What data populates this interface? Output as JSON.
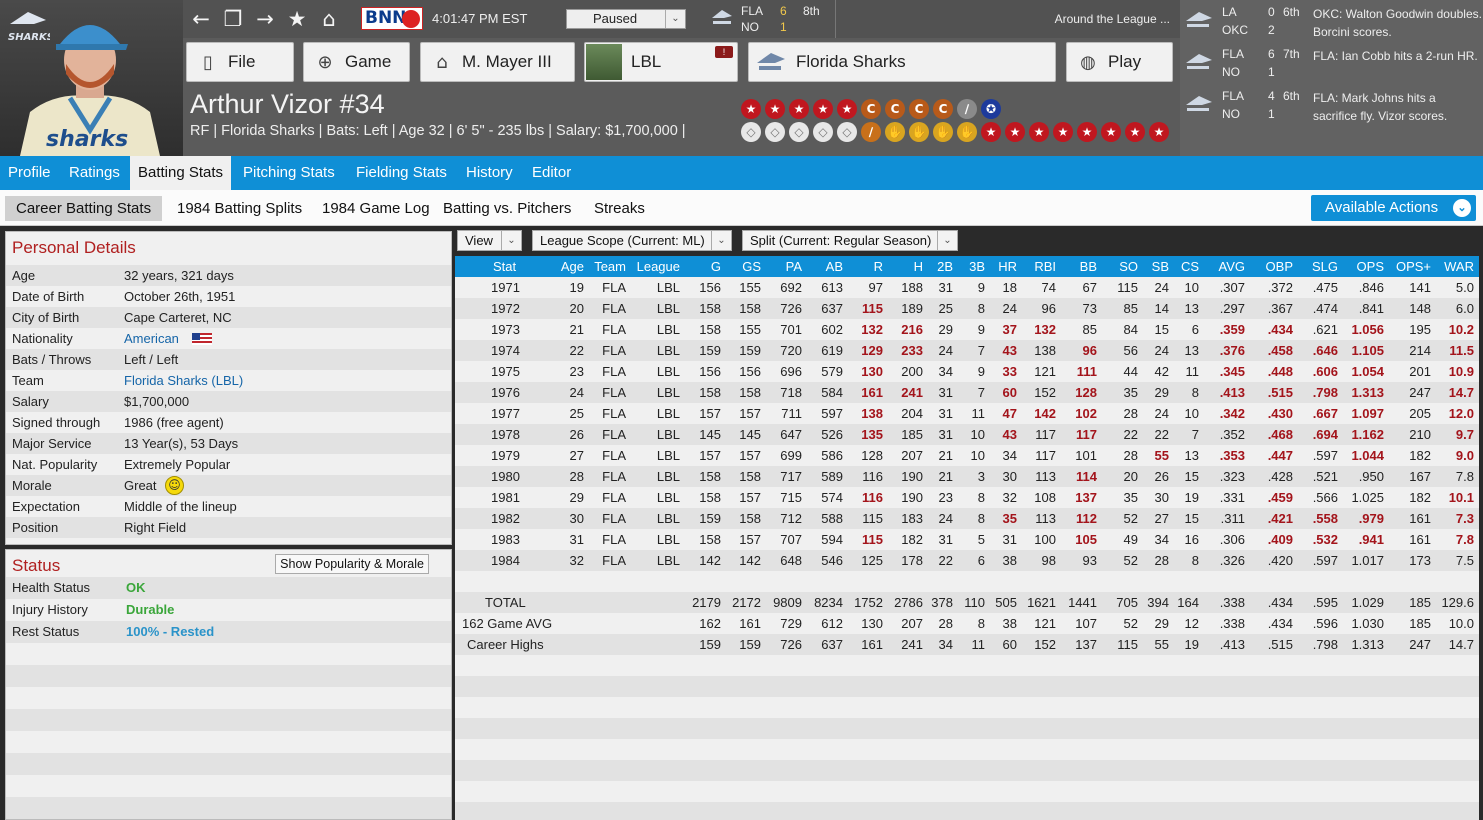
{
  "header": {
    "clock": "4:01:47 PM  EST",
    "bnn": "BNN",
    "sim_status": "Paused",
    "score": {
      "team1": "FLA",
      "team2": "NO",
      "score1": "6",
      "score2": "1",
      "inning": "8th"
    },
    "around_label": "Around the League ...",
    "menu": {
      "file": "File",
      "game": "Game",
      "manager": "M. Mayer III",
      "league": "LBL",
      "team": "Florida Sharks",
      "play": "Play"
    },
    "league_badge": "!"
  },
  "player": {
    "name": "Arthur Vizor  #34",
    "info": "RF | Florida Sharks  |  Bats: Left  |  Age 32  |  6' 5\" - 235 lbs  |  Salary: $1,700,000  |",
    "team_logo_text": "SHARKS",
    "jersey_text": "sharks"
  },
  "awards_row1": [
    {
      "g": "★",
      "c": "#c0171f"
    },
    {
      "g": "★",
      "c": "#c0171f"
    },
    {
      "g": "★",
      "c": "#c0171f"
    },
    {
      "g": "★",
      "c": "#c0171f"
    },
    {
      "g": "★",
      "c": "#c0171f"
    },
    {
      "g": "C",
      "c": "#b85a1a"
    },
    {
      "g": "C",
      "c": "#b85a1a"
    },
    {
      "g": "C",
      "c": "#b85a1a"
    },
    {
      "g": "C",
      "c": "#b85a1a"
    },
    {
      "g": "∕",
      "c": "#8a8a8a"
    },
    {
      "g": "✪",
      "c": "#1d3a9c"
    }
  ],
  "awards_row2": [
    {
      "g": "◇",
      "c": "#e8e8e8"
    },
    {
      "g": "◇",
      "c": "#e8e8e8"
    },
    {
      "g": "◇",
      "c": "#e8e8e8"
    },
    {
      "g": "◇",
      "c": "#e8e8e8"
    },
    {
      "g": "◇",
      "c": "#e8e8e8"
    },
    {
      "g": "∕",
      "c": "#c8701a"
    },
    {
      "g": "✋",
      "c": "#d9a520"
    },
    {
      "g": "✋",
      "c": "#d9a520"
    },
    {
      "g": "✋",
      "c": "#d9a520"
    },
    {
      "g": "✋",
      "c": "#d9a520"
    },
    {
      "g": "★",
      "c": "#c0171f"
    },
    {
      "g": "★",
      "c": "#c0171f"
    },
    {
      "g": "★",
      "c": "#c0171f"
    },
    {
      "g": "★",
      "c": "#c0171f"
    },
    {
      "g": "★",
      "c": "#c0171f"
    },
    {
      "g": "★",
      "c": "#c0171f"
    },
    {
      "g": "★",
      "c": "#c0171f"
    },
    {
      "g": "★",
      "c": "#c0171f"
    }
  ],
  "ticker": [
    {
      "a": "LA",
      "b": "OKC",
      "sa": "0",
      "sb": "2",
      "inn": "6th",
      "text": "OKC: Walton Goodwin doubles. Borcini scores."
    },
    {
      "a": "FLA",
      "b": "NO",
      "sa": "6",
      "sb": "1",
      "inn": "7th",
      "text": "FLA: Ian Cobb hits a 2-run HR."
    },
    {
      "a": "FLA",
      "b": "NO",
      "sa": "4",
      "sb": "1",
      "inn": "6th",
      "text": "FLA: Mark Johns hits a sacrifice fly. Vizor scores."
    }
  ],
  "tabs": [
    "Profile",
    "Ratings",
    "Batting Stats",
    "Pitching Stats",
    "Fielding Stats",
    "History",
    "Editor"
  ],
  "subtabs": [
    "Career Batting Stats",
    "1984 Batting Splits",
    "1984 Game Log",
    "Batting vs. Pitchers",
    "Streaks"
  ],
  "available_actions": "Available Actions",
  "personal": {
    "title": "Personal Details",
    "rows": [
      {
        "k": "Age",
        "v": "32 years, 321 days"
      },
      {
        "k": "Date of Birth",
        "v": "October 26th, 1951"
      },
      {
        "k": "City of Birth",
        "v": "Cape Carteret, NC"
      },
      {
        "k": "Nationality",
        "v": "American"
      },
      {
        "k": "Bats / Throws",
        "v": "Left / Left"
      },
      {
        "k": "Team",
        "v": "Florida Sharks (LBL)"
      },
      {
        "k": "Salary",
        "v": "$1,700,000"
      },
      {
        "k": "Signed through",
        "v": "1986 (free agent)"
      },
      {
        "k": "Major Service",
        "v": "13 Year(s), 53 Days"
      },
      {
        "k": "Nat. Popularity",
        "v": "Extremely Popular"
      },
      {
        "k": "Morale",
        "v": "Great"
      },
      {
        "k": "Expectation",
        "v": "Middle of the lineup"
      },
      {
        "k": "Position",
        "v": "Right Field"
      }
    ]
  },
  "status": {
    "title": "Status",
    "button": "Show Popularity & Morale",
    "rows": [
      {
        "k": "Health Status",
        "v": "OK",
        "c": "#3aa63a"
      },
      {
        "k": "Injury History",
        "v": "Durable",
        "c": "#3aa63a"
      },
      {
        "k": "Rest Status",
        "v": "100% - Rested",
        "c": "#2a93c9"
      }
    ]
  },
  "controls": {
    "view": "View",
    "scope": "League Scope  (Current: ML)",
    "split": "Split  (Current: Regular Season)"
  },
  "stats": {
    "columns": [
      "Stat",
      "Age",
      "Team",
      "League",
      "G",
      "GS",
      "PA",
      "AB",
      "R",
      "H",
      "2B",
      "3B",
      "HR",
      "RBI",
      "BB",
      "SO",
      "SB",
      "CS",
      "AVG",
      "OBP",
      "SLG",
      "OPS",
      "OPS+",
      "WAR"
    ],
    "rows": [
      [
        "1971",
        "19",
        "FLA",
        "LBL",
        "156",
        "155",
        "692",
        "613",
        "97",
        "188",
        "31",
        "9",
        "18",
        "74",
        "67",
        "115",
        "24",
        "10",
        ".307",
        ".372",
        ".475",
        ".846",
        "141",
        "5.0"
      ],
      [
        "1972",
        "20",
        "FLA",
        "LBL",
        "158",
        "158",
        "726",
        "637",
        "115",
        "189",
        "25",
        "8",
        "24",
        "96",
        "73",
        "85",
        "14",
        "13",
        ".297",
        ".367",
        ".474",
        ".841",
        "148",
        "6.0"
      ],
      [
        "1973",
        "21",
        "FLA",
        "LBL",
        "158",
        "155",
        "701",
        "602",
        "132",
        "216",
        "29",
        "9",
        "37",
        "132",
        "85",
        "84",
        "15",
        "6",
        ".359",
        ".434",
        ".621",
        "1.056",
        "195",
        "10.2"
      ],
      [
        "1974",
        "22",
        "FLA",
        "LBL",
        "159",
        "159",
        "720",
        "619",
        "129",
        "233",
        "24",
        "7",
        "43",
        "138",
        "96",
        "56",
        "24",
        "13",
        ".376",
        ".458",
        ".646",
        "1.105",
        "214",
        "11.5"
      ],
      [
        "1975",
        "23",
        "FLA",
        "LBL",
        "156",
        "156",
        "696",
        "579",
        "130",
        "200",
        "34",
        "9",
        "33",
        "121",
        "111",
        "44",
        "42",
        "11",
        ".345",
        ".448",
        ".606",
        "1.054",
        "201",
        "10.9"
      ],
      [
        "1976",
        "24",
        "FLA",
        "LBL",
        "158",
        "158",
        "718",
        "584",
        "161",
        "241",
        "31",
        "7",
        "60",
        "152",
        "128",
        "35",
        "29",
        "8",
        ".413",
        ".515",
        ".798",
        "1.313",
        "247",
        "14.7"
      ],
      [
        "1977",
        "25",
        "FLA",
        "LBL",
        "157",
        "157",
        "711",
        "597",
        "138",
        "204",
        "31",
        "11",
        "47",
        "142",
        "102",
        "28",
        "24",
        "10",
        ".342",
        ".430",
        ".667",
        "1.097",
        "205",
        "12.0"
      ],
      [
        "1978",
        "26",
        "FLA",
        "LBL",
        "145",
        "145",
        "647",
        "526",
        "135",
        "185",
        "31",
        "10",
        "43",
        "117",
        "117",
        "22",
        "22",
        "7",
        ".352",
        ".468",
        ".694",
        "1.162",
        "210",
        "9.7"
      ],
      [
        "1979",
        "27",
        "FLA",
        "LBL",
        "157",
        "157",
        "699",
        "586",
        "128",
        "207",
        "21",
        "10",
        "34",
        "117",
        "101",
        "28",
        "55",
        "13",
        ".353",
        ".447",
        ".597",
        "1.044",
        "182",
        "9.0"
      ],
      [
        "1980",
        "28",
        "FLA",
        "LBL",
        "158",
        "158",
        "717",
        "589",
        "116",
        "190",
        "21",
        "3",
        "30",
        "113",
        "114",
        "20",
        "26",
        "15",
        ".323",
        ".428",
        ".521",
        ".950",
        "167",
        "7.8"
      ],
      [
        "1981",
        "29",
        "FLA",
        "LBL",
        "158",
        "157",
        "715",
        "574",
        "116",
        "190",
        "23",
        "8",
        "32",
        "108",
        "137",
        "35",
        "30",
        "19",
        ".331",
        ".459",
        ".566",
        "1.025",
        "182",
        "10.1"
      ],
      [
        "1982",
        "30",
        "FLA",
        "LBL",
        "159",
        "158",
        "712",
        "588",
        "115",
        "183",
        "24",
        "8",
        "35",
        "113",
        "112",
        "52",
        "27",
        "15",
        ".311",
        ".421",
        ".558",
        ".979",
        "161",
        "7.3"
      ],
      [
        "1983",
        "31",
        "FLA",
        "LBL",
        "158",
        "157",
        "707",
        "594",
        "115",
        "182",
        "31",
        "5",
        "31",
        "100",
        "105",
        "49",
        "34",
        "16",
        ".306",
        ".409",
        ".532",
        ".941",
        "161",
        "7.8"
      ],
      [
        "1984",
        "32",
        "FLA",
        "LBL",
        "142",
        "142",
        "648",
        "546",
        "125",
        "178",
        "22",
        "6",
        "38",
        "98",
        "93",
        "52",
        "28",
        "8",
        ".326",
        ".420",
        ".597",
        "1.017",
        "173",
        "7.5"
      ]
    ],
    "highlights": [
      [],
      [
        "R"
      ],
      [
        "R",
        "H",
        "HR",
        "RBI",
        "AVG",
        "OBP",
        "OPS",
        "WAR"
      ],
      [
        "R",
        "H",
        "HR",
        "BB",
        "AVG",
        "OBP",
        "SLG",
        "OPS",
        "WAR"
      ],
      [
        "R",
        "HR",
        "BB",
        "AVG",
        "OBP",
        "SLG",
        "OPS",
        "WAR"
      ],
      [
        "R",
        "H",
        "HR",
        "BB",
        "AVG",
        "OBP",
        "SLG",
        "OPS",
        "WAR"
      ],
      [
        "R",
        "HR",
        "RBI",
        "BB",
        "AVG",
        "OBP",
        "SLG",
        "OPS",
        "WAR"
      ],
      [
        "R",
        "HR",
        "BB",
        "OBP",
        "SLG",
        "OPS",
        "WAR"
      ],
      [
        "SB",
        "AVG",
        "OBP",
        "OPS",
        "WAR"
      ],
      [
        "BB"
      ],
      [
        "R",
        "BB",
        "OBP",
        "WAR"
      ],
      [
        "HR",
        "BB",
        "OBP",
        "SLG",
        "OPS",
        "WAR"
      ],
      [
        "R",
        "BB",
        "OBP",
        "SLG",
        "OPS",
        "WAR"
      ],
      []
    ],
    "summary": [
      {
        "label": "TOTAL",
        "vals": [
          "",
          "",
          "",
          "2179",
          "2172",
          "9809",
          "8234",
          "1752",
          "2786",
          "378",
          "110",
          "505",
          "1621",
          "1441",
          "705",
          "394",
          "164",
          ".338",
          ".434",
          ".595",
          "1.029",
          "185",
          "129.6"
        ]
      },
      {
        "label": "162 Game AVG",
        "vals": [
          "",
          "",
          "",
          "162",
          "161",
          "729",
          "612",
          "130",
          "207",
          "28",
          "8",
          "38",
          "121",
          "107",
          "52",
          "29",
          "12",
          ".338",
          ".434",
          ".596",
          "1.030",
          "185",
          "10.0"
        ]
      },
      {
        "label": "Career Highs",
        "vals": [
          "",
          "",
          "",
          "159",
          "159",
          "726",
          "637",
          "161",
          "241",
          "34",
          "11",
          "60",
          "152",
          "137",
          "115",
          "55",
          "19",
          ".413",
          ".515",
          ".798",
          "1.313",
          "247",
          "14.7"
        ]
      }
    ]
  }
}
